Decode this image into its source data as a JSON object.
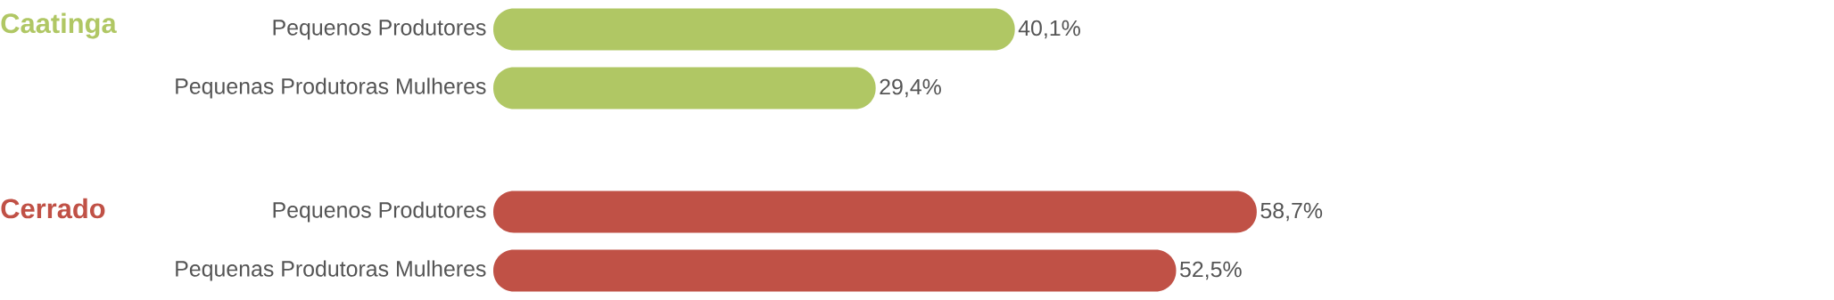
{
  "chart_data": [
    {
      "type": "bar",
      "orientation": "horizontal",
      "title": "Caatinga",
      "categories": [
        "Pequenos Produtores",
        "Pequenas Produtoras Mulheres"
      ],
      "values": [
        40.1,
        29.4
      ],
      "value_labels": [
        "40,1%",
        "29,4%"
      ],
      "color": "#b0c764"
    },
    {
      "type": "bar",
      "orientation": "horizontal",
      "title": "Cerrado",
      "categories": [
        "Pequenos Produtores",
        "Pequenas Produtoras Mulheres"
      ],
      "values": [
        58.7,
        52.5
      ],
      "value_labels": [
        "58,7%",
        "52,5%"
      ],
      "color": "#c05146"
    }
  ]
}
